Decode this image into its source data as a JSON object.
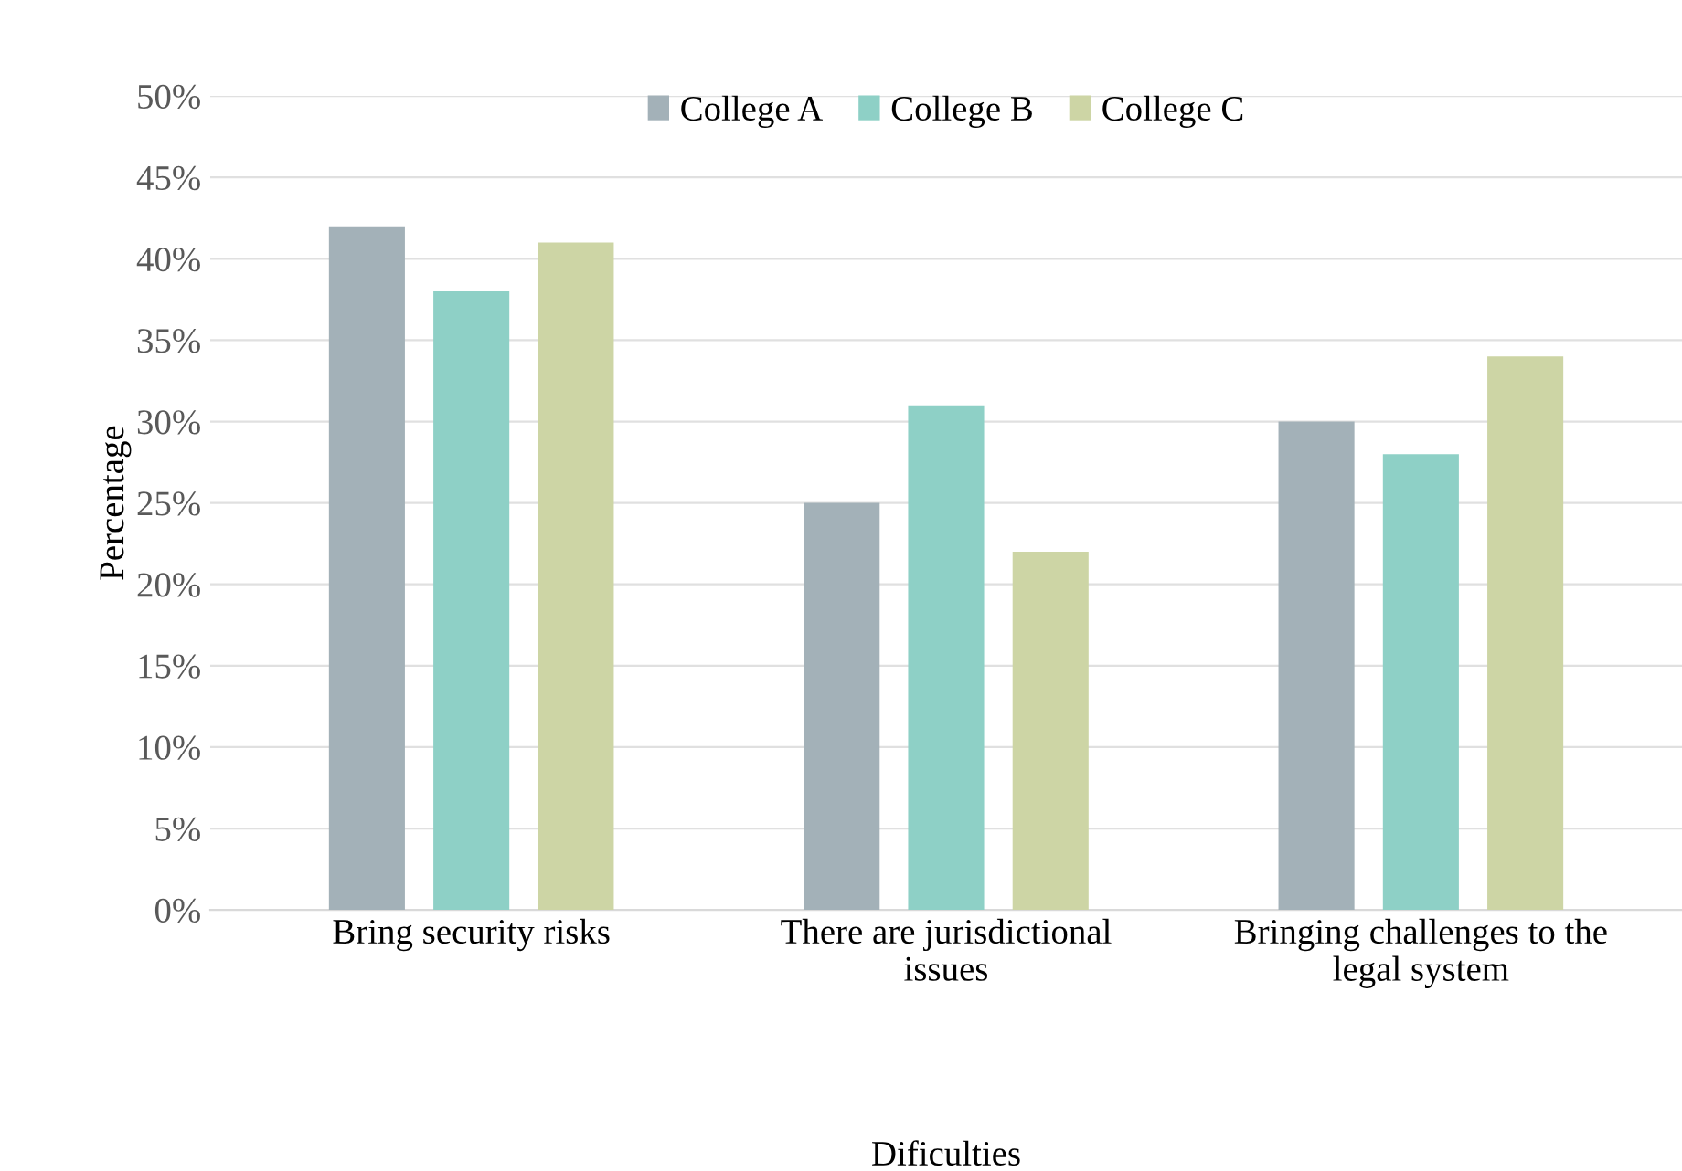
{
  "chart_data": {
    "type": "bar",
    "xlabel": "Dificulties",
    "ylabel": "Percentage",
    "categories": [
      "Bring security risks",
      "There are jurisdictional\nissues",
      "Bringing challenges to the\nlegal system"
    ],
    "series": [
      {
        "name": "College A",
        "color": "#a3b1b8",
        "values": [
          42,
          25,
          30
        ]
      },
      {
        "name": "College B",
        "color": "#8ed0c6",
        "values": [
          38,
          31,
          28
        ]
      },
      {
        "name": "College C",
        "color": "#cdd5a5",
        "values": [
          41,
          22,
          34
        ]
      }
    ],
    "ylim": [
      0,
      50
    ],
    "yticks": [
      {
        "value": 0,
        "label": "0%"
      },
      {
        "value": 5,
        "label": "5%"
      },
      {
        "value": 10,
        "label": "10%"
      },
      {
        "value": 15,
        "label": "15%"
      },
      {
        "value": 20,
        "label": "20%"
      },
      {
        "value": 25,
        "label": "25%"
      },
      {
        "value": 30,
        "label": "30%"
      },
      {
        "value": 35,
        "label": "35%"
      },
      {
        "value": 40,
        "label": "40%"
      },
      {
        "value": 45,
        "label": "45%"
      },
      {
        "value": 50,
        "label": "50%"
      }
    ],
    "grid": "y",
    "legend": "top"
  }
}
